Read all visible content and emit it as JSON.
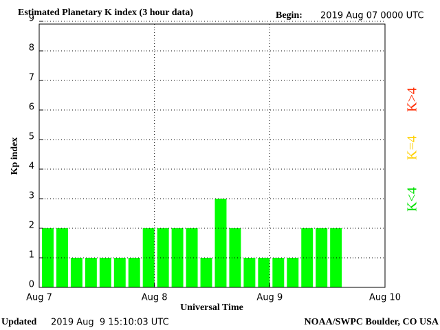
{
  "header": {
    "title": "Estimated Planetary K index (3 hour data)",
    "begin_label": "Begin:",
    "begin_value": "2019 Aug 07 0000 UTC"
  },
  "chart_data": {
    "type": "bar",
    "color": "#00ff00",
    "categories": [
      null,
      null,
      null,
      null,
      null,
      null,
      null,
      null,
      null,
      null,
      null,
      null,
      null,
      null,
      null,
      null,
      null,
      null,
      null,
      null,
      null
    ],
    "values": [
      2,
      2,
      1,
      1,
      1,
      1,
      1,
      2,
      2,
      2,
      2,
      1,
      3,
      2,
      1,
      1,
      1,
      1,
      2,
      2,
      2
    ],
    "xlim": [
      0,
      24
    ],
    "xticks": [
      {
        "value": 0,
        "label": "Aug 7"
      },
      {
        "value": 8,
        "label": "Aug 8"
      },
      {
        "value": 16,
        "label": "Aug 9"
      },
      {
        "value": 24,
        "label": "Aug 10"
      }
    ],
    "ylim": [
      0,
      9
    ],
    "yticks": [
      0,
      1,
      2,
      3,
      4,
      5,
      6,
      7,
      8,
      9
    ],
    "y_label": "Kp index",
    "x_label": "Universal Time",
    "grid": true,
    "legend": [
      {
        "label": "K>4",
        "color": "#ff2a00"
      },
      {
        "label": "K=4",
        "color": "#ffd000"
      },
      {
        "label": "K<4",
        "color": "#00e000"
      }
    ]
  },
  "footer": {
    "updated_label": "Updated",
    "updated_value": "2019 Aug  9 15:10:03 UTC",
    "source": "NOAA/SWPC Boulder, CO USA"
  }
}
